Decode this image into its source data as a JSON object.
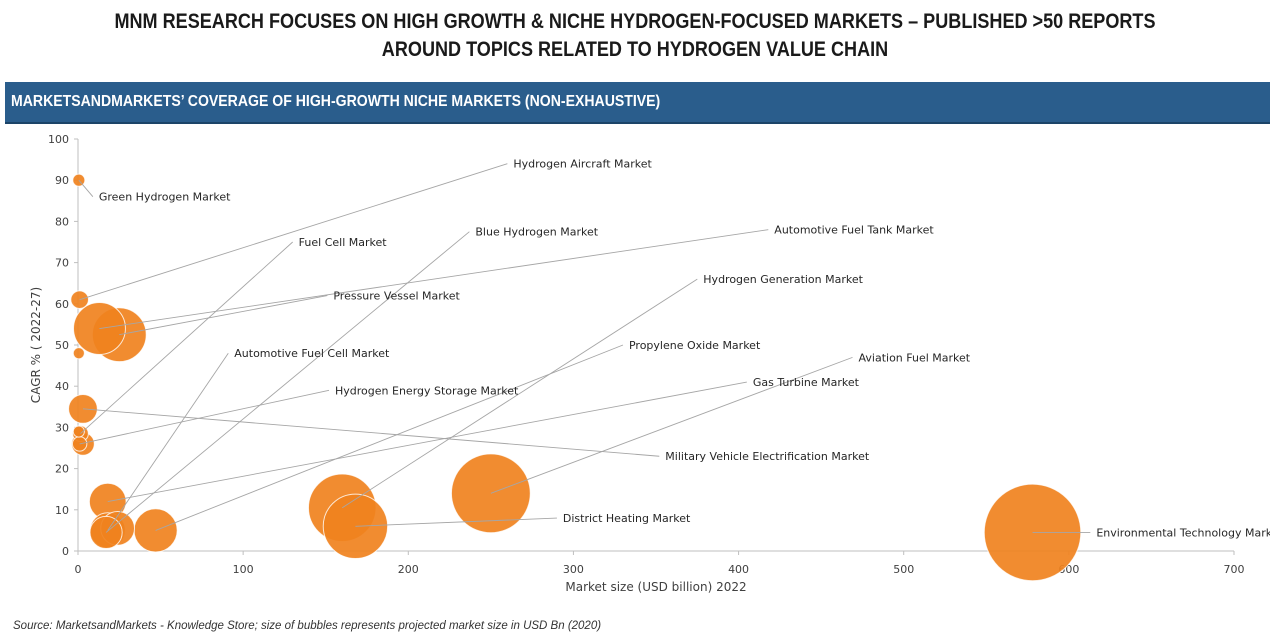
{
  "header": {
    "title_line1": "MNM RESEARCH FOCUSES ON HIGH GROWTH & NICHE HYDROGEN-FOCUSED MARKETS – PUBLISHED >50 REPORTS",
    "title_line2": "AROUND TOPICS RELATED TO HYDROGEN VALUE CHAIN"
  },
  "banner": {
    "text": "MARKETSANDMARKETS’ COVERAGE OF HIGH-GROWTH NICHE MARKETS (NON-EXHAUSTIVE)"
  },
  "footer": {
    "source": "Source: MarketsandMarkets - Knowledge Store; size of bubbles represents projected market size in USD Bn (2020)"
  },
  "chart_data": {
    "type": "scatter",
    "subtype": "bubble",
    "title": "",
    "xlabel": "Market size (USD billion) 2022",
    "ylabel": "CAGR % ( 2022-27)",
    "xlim": [
      0,
      700
    ],
    "ylim": [
      0,
      100
    ],
    "xticks": [
      0,
      100,
      200,
      300,
      400,
      500,
      600,
      700
    ],
    "yticks": [
      0,
      10,
      20,
      30,
      40,
      50,
      60,
      70,
      80,
      90,
      100
    ],
    "grid": false,
    "bubble_color": "#f0821e",
    "points": [
      {
        "name": "Hydrogen Aircraft Market",
        "x": 1,
        "y": 61,
        "size": 1.5,
        "label_x": 260,
        "label_y": 94
      },
      {
        "name": "Green Hydrogen Market",
        "x": 0.5,
        "y": 90,
        "size": 0.7,
        "label_x": 9,
        "label_y": 86
      },
      {
        "name": "Fuel Cell Market",
        "x": 1.5,
        "y": 28.5,
        "size": 1.2,
        "label_x": 130,
        "label_y": 75
      },
      {
        "name": "Blue Hydrogen Market",
        "x": 17,
        "y": 4.5,
        "size": 5,
        "label_x": 237,
        "label_y": 77.5
      },
      {
        "name": "Automotive Fuel Tank Market",
        "x": 13,
        "y": 54,
        "size": 13,
        "label_x": 418,
        "label_y": 78
      },
      {
        "name": "Pressure Vessel Market",
        "x": 25,
        "y": 52.5,
        "size": 14,
        "label_x": 151,
        "label_y": 62
      },
      {
        "name": "Hydrogen Generation Market",
        "x": 160,
        "y": 10.5,
        "size": 22,
        "label_x": 375,
        "label_y": 66
      },
      {
        "name": "Automotive Fuel Cell Market",
        "x": 18,
        "y": 5,
        "size": 6,
        "label_x": 91,
        "label_y": 48
      },
      {
        "name": "Propylene Oxide Market",
        "x": 47,
        "y": 5,
        "size": 9,
        "label_x": 330,
        "label_y": 50
      },
      {
        "name": "Aviation Fuel Market",
        "x": 250,
        "y": 14,
        "size": 30,
        "label_x": 469,
        "label_y": 47
      },
      {
        "name": "Gas Turbine Market",
        "x": 18,
        "y": 12,
        "size": 6.5,
        "label_x": 405,
        "label_y": 41
      },
      {
        "name": "Hydrogen Energy Storage Market",
        "x": 1,
        "y": 26,
        "size": 1,
        "label_x": 152,
        "label_y": 39
      },
      {
        "name": "Military Vehicle Electrification Market",
        "x": 3,
        "y": 34.5,
        "size": 4,
        "label_x": 352,
        "label_y": 23
      },
      {
        "name": "District Heating Market",
        "x": 168,
        "y": 6,
        "size": 20,
        "label_x": 290,
        "label_y": 8
      },
      {
        "name": "Environmental Technology Market",
        "x": 578,
        "y": 4.5,
        "size": 45,
        "label_x": 613,
        "label_y": 4.5
      },
      {
        "name": "",
        "x": 0.5,
        "y": 48,
        "size": 0.6
      },
      {
        "name": "",
        "x": 0.5,
        "y": 29,
        "size": 0.6
      },
      {
        "name": "",
        "x": 3,
        "y": 26,
        "size": 2.5
      },
      {
        "name": "",
        "x": 24,
        "y": 5.5,
        "size": 5.5
      }
    ]
  }
}
